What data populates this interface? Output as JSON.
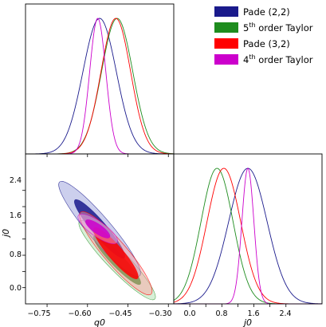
{
  "chart_data": {
    "type": "corner-plot",
    "parameters": [
      "q0",
      "j0"
    ],
    "axis_labels": {
      "x_left": "q0",
      "x_right": "j0",
      "y_left": "j0"
    },
    "ticks": {
      "q0": [
        "−0.75",
        "−0.60",
        "−0.45",
        "−0.30"
      ],
      "j0_x": [
        "0.0",
        "0.8",
        "1.6",
        "2.4"
      ],
      "j0_y": [
        "0.0",
        "0.4",
        "0.8",
        "1.2",
        "1.6",
        "2.0",
        "2.4"
      ],
      "j0_y_shown": [
        "0.0",
        "0.8",
        "1.6",
        "2.4"
      ]
    },
    "ranges": {
      "q0": [
        -0.83,
        -0.28
      ],
      "j0": [
        -0.4,
        3.3
      ]
    },
    "legend": {
      "placement": "top-right",
      "entries": [
        {
          "label_main": "Pade (2,2)",
          "label_sup": "",
          "label_rest": "",
          "color": "#1a1a8c"
        },
        {
          "label_main": "5",
          "label_sup": "th",
          "label_rest": " order Taylor",
          "color": "#1e8c1e"
        },
        {
          "label_main": "Pade (3,2)",
          "label_sup": "",
          "label_rest": "",
          "color": "#ff0000"
        },
        {
          "label_main": "4",
          "label_sup": "th",
          "label_rest": " order Taylor",
          "color": "#cc00cc"
        }
      ]
    },
    "series": [
      {
        "name": "Pade (2,2)",
        "color": "#1a1a8c",
        "q0_mean": -0.555,
        "q0_sigma": 0.062,
        "j0_mean": 1.45,
        "j0_sigma": 0.48,
        "corr": -0.93
      },
      {
        "name": "5th order Taylor",
        "color": "#1e8c1e",
        "q0_mean": -0.49,
        "q0_sigma": 0.058,
        "j0_mean": 0.68,
        "j0_sigma": 0.4,
        "corr": -0.93
      },
      {
        "name": "Pade (3,2)",
        "color": "#ff0000",
        "q0_mean": -0.495,
        "q0_sigma": 0.055,
        "j0_mean": 0.85,
        "j0_sigma": 0.42,
        "corr": -0.91
      },
      {
        "name": "4th order Taylor",
        "color": "#cc00cc",
        "q0_mean": -0.562,
        "q0_sigma": 0.03,
        "j0_mean": 1.45,
        "j0_sigma": 0.15,
        "corr": -0.8
      }
    ],
    "grid": false
  }
}
